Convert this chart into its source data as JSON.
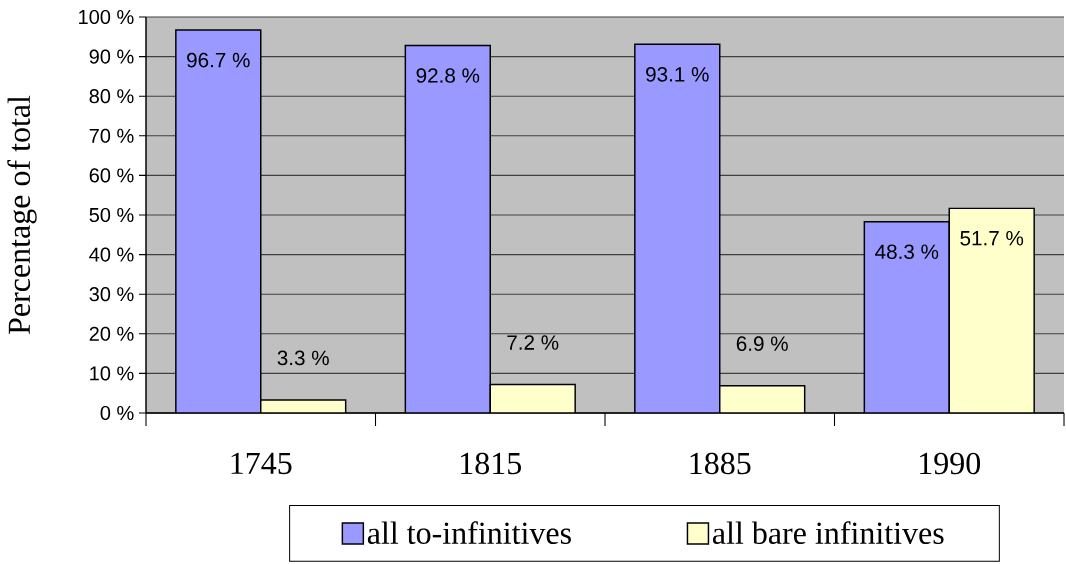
{
  "chart_data": {
    "type": "bar",
    "categories": [
      "1745",
      "1815",
      "1885",
      "1990"
    ],
    "series": [
      {
        "name": "all to-infinitives",
        "color": "#9999ff",
        "values": [
          96.7,
          92.8,
          93.1,
          48.3
        ],
        "value_labels": [
          "96.7 %",
          "92.8 %",
          "93.1 %",
          "48.3 %"
        ]
      },
      {
        "name": "all bare infinitives",
        "color": "#ffffcc",
        "values": [
          3.3,
          7.2,
          6.9,
          51.7
        ],
        "value_labels": [
          "3.3 %",
          "7.2 %",
          "6.9 %",
          "51.7 %"
        ]
      }
    ],
    "ylabel": "Percentage of total",
    "ylim": [
      0,
      100
    ],
    "yticks": [
      {
        "value": 0,
        "label": "0 %"
      },
      {
        "value": 10,
        "label": "10 %"
      },
      {
        "value": 20,
        "label": "20 %"
      },
      {
        "value": 30,
        "label": "30 %"
      },
      {
        "value": 40,
        "label": "40 %"
      },
      {
        "value": 50,
        "label": "50 %"
      },
      {
        "value": 60,
        "label": "60 %"
      },
      {
        "value": 70,
        "label": "70 %"
      },
      {
        "value": 80,
        "label": "80 %"
      },
      {
        "value": 90,
        "label": "90 %"
      },
      {
        "value": 100,
        "label": "100 %"
      }
    ],
    "grid": "y",
    "legend": "bottom"
  }
}
